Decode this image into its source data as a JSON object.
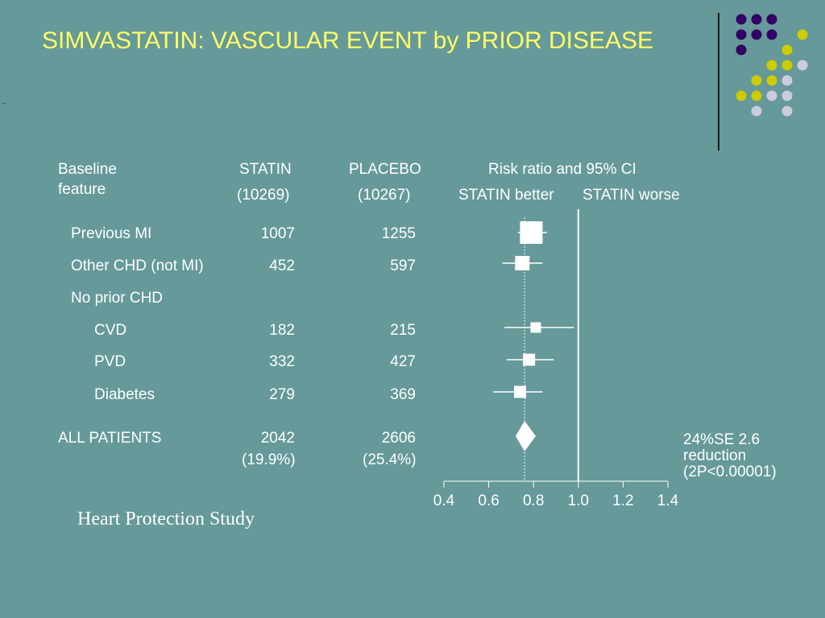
{
  "slide": {
    "title": "SIMVASTATIN: VASCULAR EVENT by PRIOR DISEASE",
    "footer": "Heart Protection Study",
    "reduction_lines": [
      "24%SE 2.6",
      "reduction",
      "(2P<0.00001)"
    ],
    "decor_dash": "~"
  },
  "decoration": {
    "dot_colors": {
      "purple": "#330066",
      "yellow": "#cccc00",
      "lavender": "#ccccdd"
    },
    "dots": [
      {
        "row": 0,
        "col": 1,
        "c": "purple"
      },
      {
        "row": 0,
        "col": 2,
        "c": "purple"
      },
      {
        "row": 0,
        "col": 3,
        "c": "purple"
      },
      {
        "row": 1,
        "col": 1,
        "c": "purple"
      },
      {
        "row": 1,
        "col": 2,
        "c": "purple"
      },
      {
        "row": 1,
        "col": 3,
        "c": "purple"
      },
      {
        "row": 1,
        "col": 5,
        "c": "yellow"
      },
      {
        "row": 2,
        "col": 1,
        "c": "purple"
      },
      {
        "row": 2,
        "col": 4,
        "c": "yellow"
      },
      {
        "row": 3,
        "col": 3,
        "c": "yellow"
      },
      {
        "row": 3,
        "col": 4,
        "c": "yellow"
      },
      {
        "row": 3,
        "col": 5,
        "c": "lavender"
      },
      {
        "row": 4,
        "col": 2,
        "c": "yellow"
      },
      {
        "row": 4,
        "col": 3,
        "c": "yellow"
      },
      {
        "row": 4,
        "col": 4,
        "c": "lavender"
      },
      {
        "row": 5,
        "col": 1,
        "c": "yellow"
      },
      {
        "row": 5,
        "col": 2,
        "c": "yellow"
      },
      {
        "row": 5,
        "col": 3,
        "c": "lavender"
      },
      {
        "row": 5,
        "col": 4,
        "c": "lavender"
      },
      {
        "row": 6,
        "col": 2,
        "c": "lavender"
      },
      {
        "row": 6,
        "col": 4,
        "c": "lavender"
      }
    ]
  },
  "table": {
    "headers": {
      "feature": [
        "Baseline",
        "feature"
      ],
      "statin": "STATIN",
      "statin_n": "(10269)",
      "placebo": "PLACEBO",
      "placebo_n": "(10267)",
      "risk": "Risk ratio and 95% CI",
      "better": "STATIN better",
      "worse": "STATIN worse"
    },
    "rows": [
      {
        "label": "Previous MI",
        "indent": 1,
        "statin": "1007",
        "placebo": "1255"
      },
      {
        "label": "Other CHD (not MI)",
        "indent": 1,
        "statin": "452",
        "placebo": "597"
      },
      {
        "label": "No prior CHD",
        "indent": 1,
        "statin": "",
        "placebo": ""
      },
      {
        "label": "CVD",
        "indent": 2,
        "statin": "182",
        "placebo": "215"
      },
      {
        "label": "PVD",
        "indent": 2,
        "statin": "332",
        "placebo": "427"
      },
      {
        "label": "Diabetes",
        "indent": 2,
        "statin": "279",
        "placebo": "369"
      }
    ],
    "total": {
      "label": "ALL PATIENTS",
      "statin": "2042",
      "statin_pct": "(19.9%)",
      "placebo": "2606",
      "placebo_pct": "(25.4%)"
    }
  },
  "chart_data": {
    "type": "forest",
    "title": "Risk ratio and 95% CI",
    "xlim": [
      0.4,
      1.4
    ],
    "ticks": [
      "0.4",
      "0.6",
      "0.8",
      "1.0",
      "1.2",
      "1.4"
    ],
    "reference_line": 1.0,
    "side_labels": {
      "left": "STATIN better",
      "right": "STATIN worse"
    },
    "points": [
      {
        "label": "Previous MI",
        "rr": 0.79,
        "lo": 0.73,
        "hi": 0.86
      },
      {
        "label": "Other CHD (not MI)",
        "rr": 0.75,
        "lo": 0.66,
        "hi": 0.84
      },
      {
        "label": "CVD",
        "rr": 0.81,
        "lo": 0.67,
        "hi": 0.98
      },
      {
        "label": "PVD",
        "rr": 0.78,
        "lo": 0.68,
        "hi": 0.89
      },
      {
        "label": "Diabetes",
        "rr": 0.74,
        "lo": 0.62,
        "hi": 0.84
      }
    ],
    "summary": {
      "label": "ALL PATIENTS",
      "rr": 0.76,
      "lo": 0.72,
      "hi": 0.81
    }
  }
}
